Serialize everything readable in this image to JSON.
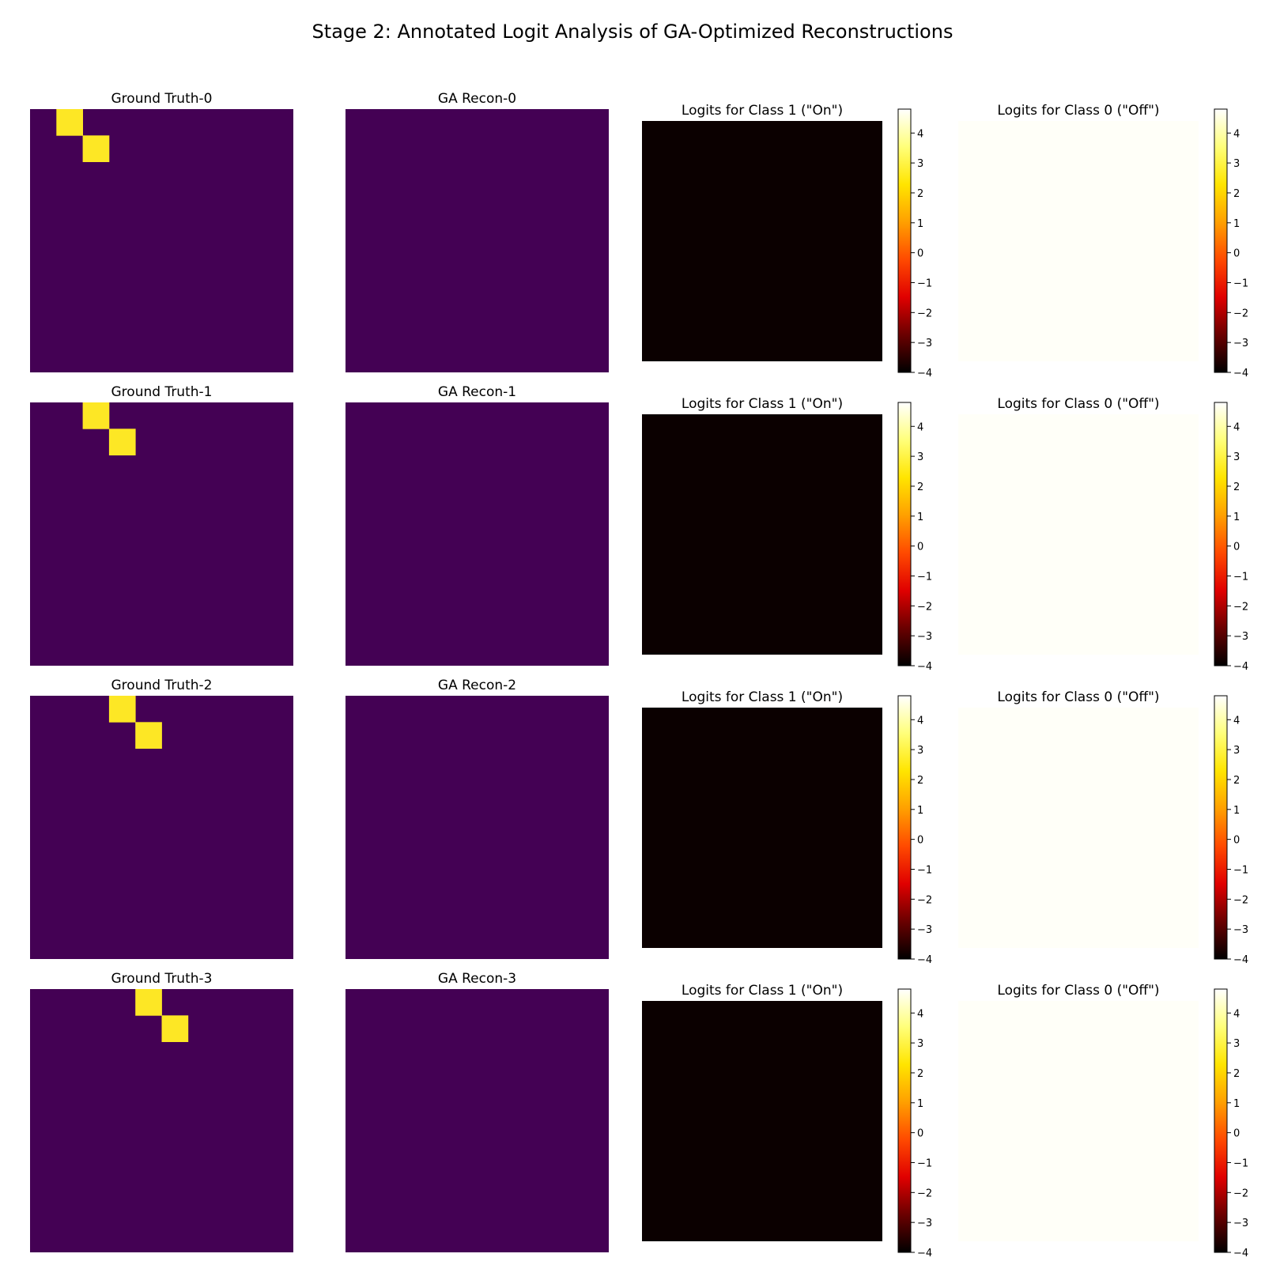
{
  "figure": {
    "title": "Stage 2: Annotated Logit Analysis of GA-Optimized Reconstructions"
  },
  "colors": {
    "viridis_low": "#440154",
    "viridis_high": "#fde725",
    "logit_on_fill": "#0b0000",
    "logit_off_fill": "#fffff8",
    "colorbar_stops": [
      "#000000",
      "#6a0000",
      "#e00000",
      "#ff4a00",
      "#ffa000",
      "#ffe500",
      "#ffff7a",
      "#ffffff"
    ]
  },
  "chart_data": [
    {
      "type": "heatmap",
      "title": "Ground Truth-0",
      "grid": [
        10,
        10
      ],
      "value_range": [
        0,
        1
      ],
      "on_cells": [
        [
          0,
          1
        ],
        [
          1,
          2
        ]
      ]
    },
    {
      "type": "heatmap",
      "title": "GA Recon-0",
      "grid": [
        10,
        10
      ],
      "value_range": [
        0,
        1
      ],
      "on_cells": []
    },
    {
      "type": "heatmap",
      "title": "Logits for Class 1 (\"On\")",
      "fill_value": -4.4,
      "colorbar": {
        "ticks": [
          4,
          3,
          2,
          1,
          0,
          -1,
          -2,
          -3,
          -4
        ],
        "range": [
          -4,
          4.8
        ]
      }
    },
    {
      "type": "heatmap",
      "title": "Logits for Class 0 (\"Off\")",
      "fill_value": 4.6,
      "colorbar": {
        "ticks": [
          4,
          3,
          2,
          1,
          0,
          -1,
          -2,
          -3,
          -4
        ],
        "range": [
          -4,
          4.8
        ]
      }
    },
    {
      "type": "heatmap",
      "title": "Ground Truth-1",
      "grid": [
        10,
        10
      ],
      "value_range": [
        0,
        1
      ],
      "on_cells": [
        [
          0,
          2
        ],
        [
          1,
          3
        ]
      ]
    },
    {
      "type": "heatmap",
      "title": "GA Recon-1",
      "grid": [
        10,
        10
      ],
      "value_range": [
        0,
        1
      ],
      "on_cells": []
    },
    {
      "type": "heatmap",
      "title": "Logits for Class 1 (\"On\")",
      "fill_value": -4.4,
      "colorbar": {
        "ticks": [
          4,
          3,
          2,
          1,
          0,
          -1,
          -2,
          -3,
          -4
        ],
        "range": [
          -4,
          4.8
        ]
      }
    },
    {
      "type": "heatmap",
      "title": "Logits for Class 0 (\"Off\")",
      "fill_value": 4.6,
      "colorbar": {
        "ticks": [
          4,
          3,
          2,
          1,
          0,
          -1,
          -2,
          -3,
          -4
        ],
        "range": [
          -4,
          4.8
        ]
      }
    },
    {
      "type": "heatmap",
      "title": "Ground Truth-2",
      "grid": [
        10,
        10
      ],
      "value_range": [
        0,
        1
      ],
      "on_cells": [
        [
          0,
          3
        ],
        [
          1,
          4
        ]
      ]
    },
    {
      "type": "heatmap",
      "title": "GA Recon-2",
      "grid": [
        10,
        10
      ],
      "value_range": [
        0,
        1
      ],
      "on_cells": []
    },
    {
      "type": "heatmap",
      "title": "Logits for Class 1 (\"On\")",
      "fill_value": -4.4,
      "colorbar": {
        "ticks": [
          4,
          3,
          2,
          1,
          0,
          -1,
          -2,
          -3,
          -4
        ],
        "range": [
          -4,
          4.8
        ]
      }
    },
    {
      "type": "heatmap",
      "title": "Logits for Class 0 (\"Off\")",
      "fill_value": 4.6,
      "colorbar": {
        "ticks": [
          4,
          3,
          2,
          1,
          0,
          -1,
          -2,
          -3,
          -4
        ],
        "range": [
          -4,
          4.8
        ]
      }
    },
    {
      "type": "heatmap",
      "title": "Ground Truth-3",
      "grid": [
        10,
        10
      ],
      "value_range": [
        0,
        1
      ],
      "on_cells": [
        [
          0,
          4
        ],
        [
          1,
          5
        ]
      ]
    },
    {
      "type": "heatmap",
      "title": "GA Recon-3",
      "grid": [
        10,
        10
      ],
      "value_range": [
        0,
        1
      ],
      "on_cells": []
    },
    {
      "type": "heatmap",
      "title": "Logits for Class 1 (\"On\")",
      "fill_value": -4.4,
      "colorbar": {
        "ticks": [
          4,
          3,
          2,
          1,
          0,
          -1,
          -2,
          -3,
          -4
        ],
        "range": [
          -4,
          4.8
        ]
      }
    },
    {
      "type": "heatmap",
      "title": "Logits for Class 0 (\"Off\")",
      "fill_value": 4.6,
      "colorbar": {
        "ticks": [
          4,
          3,
          2,
          1,
          0,
          -1,
          -2,
          -3,
          -4
        ],
        "range": [
          -4,
          4.8
        ]
      }
    }
  ]
}
